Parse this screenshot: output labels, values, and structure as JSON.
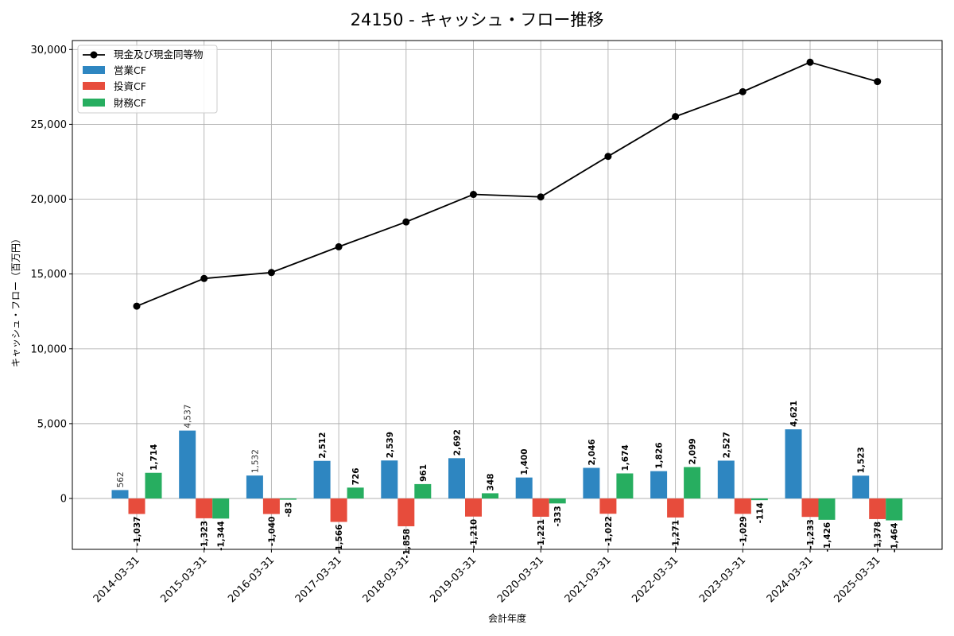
{
  "chart_data": {
    "type": "bar",
    "title": "24150 - キャッシュ・フロー推移",
    "xlabel": "会計年度",
    "ylabel": "キャッシュ・フロー（百万円）",
    "ylim": [
      -3400,
      30600
    ],
    "yticks": [
      0,
      5000,
      10000,
      15000,
      20000,
      25000,
      30000
    ],
    "ytick_labels": [
      "0",
      "5,000",
      "10,000",
      "15,000",
      "20,000",
      "25,000",
      "30,000"
    ],
    "grid": true,
    "legend_position": "top-left",
    "categories": [
      "2014-03-31",
      "2015-03-31",
      "2016-03-31",
      "2017-03-31",
      "2018-03-31",
      "2019-03-31",
      "2020-03-31",
      "2021-03-31",
      "2022-03-31",
      "2023-03-31",
      "2024-03-31",
      "2025-03-31"
    ],
    "series": [
      {
        "name": "営業CF",
        "kind": "bar",
        "color": "#2e86c1",
        "values": [
          562,
          4537,
          1532,
          2512,
          2539,
          2692,
          1400,
          2046,
          1826,
          2527,
          4621,
          1523
        ],
        "labels": [
          "562",
          "4,537",
          "1,532",
          "2,512",
          "2,539",
          "2,692",
          "1,400",
          "2,046",
          "1,826",
          "2,527",
          "4,621",
          "1,523"
        ]
      },
      {
        "name": "投資CF",
        "kind": "bar",
        "color": "#e74c3c",
        "values": [
          -1037,
          -1323,
          -1040,
          -1566,
          -1858,
          -1210,
          -1221,
          -1022,
          -1271,
          -1029,
          -1233,
          -1378
        ],
        "labels": [
          "-1,037",
          "-1,323",
          "-1,040",
          "-1,566",
          "-1,858",
          "-1,210",
          "-1,221",
          "-1,022",
          "-1,271",
          "-1,029",
          "-1,233",
          "-1,378"
        ]
      },
      {
        "name": "財務CF",
        "kind": "bar",
        "color": "#27ae60",
        "values": [
          1714,
          -1344,
          -83,
          726,
          961,
          348,
          -333,
          1674,
          2099,
          -114,
          -1426,
          -1464
        ],
        "labels": [
          "1,714",
          "-1,344",
          "-83",
          "726",
          "961",
          "348",
          "-333",
          "1,674",
          "2,099",
          "-114",
          "-1,426",
          "-1,464"
        ]
      },
      {
        "name": "現金及び現金同等物",
        "kind": "line",
        "color": "#000000",
        "values": [
          12850,
          14700,
          15100,
          16820,
          18480,
          20320,
          20150,
          22860,
          25520,
          27180,
          29150,
          27860
        ]
      }
    ]
  }
}
